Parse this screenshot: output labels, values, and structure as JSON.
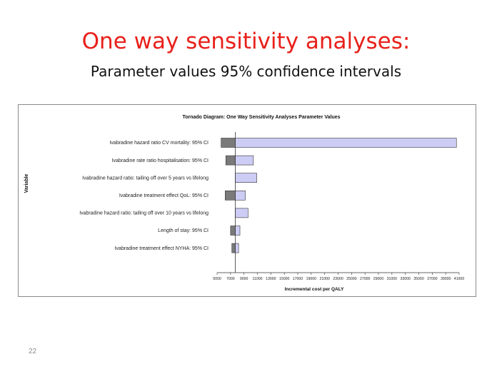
{
  "slide": {
    "title": "One way sensitivity analyses:",
    "subtitle": "Parameter values 95% confidence intervals",
    "page_number": "22"
  },
  "colors": {
    "title": "#e8201a",
    "low_bar": "#7a7a7a",
    "high_bar": "#ccccf5",
    "bar_stroke": "#333333"
  },
  "chart_data": {
    "type": "bar",
    "orientation": "horizontal",
    "title": "Tornado Diagram: One  Way Sensitivity Analyses Parameter Values",
    "xlabel": "Incremental cost per QALY",
    "ylabel": "Variable",
    "xlim": [
      5000,
      41000
    ],
    "base_value": 7700,
    "xticks": [
      5000,
      7000,
      9000,
      11000,
      13000,
      15000,
      17000,
      19000,
      21000,
      23000,
      25000,
      27000,
      29000,
      31000,
      33000,
      35000,
      37000,
      39000,
      41000
    ],
    "categories": [
      "Ivabradine hazard ratio CV mortality: 95% CI",
      "Ivabradine rate ratio hospitalisation:  95% CI",
      "Ivabradine hazard ratio: tailing off over 5 years vs lifelong",
      "Ivabradine treatment effect QoL: 95% CI",
      "Ivabradine hazard ratio: tailing off over 10 years vs lifelong",
      "Length of stay: 95% CI",
      "Ivabradine treatment effect NYHA: 95% CI"
    ],
    "series": [
      {
        "values": [
          5600,
          6300,
          7700,
          6200,
          7700,
          7000,
          7200
        ]
      },
      {
        "values": [
          40600,
          10400,
          10900,
          9200,
          9600,
          8400,
          8200
        ]
      }
    ],
    "grid": false,
    "legend": "none"
  }
}
